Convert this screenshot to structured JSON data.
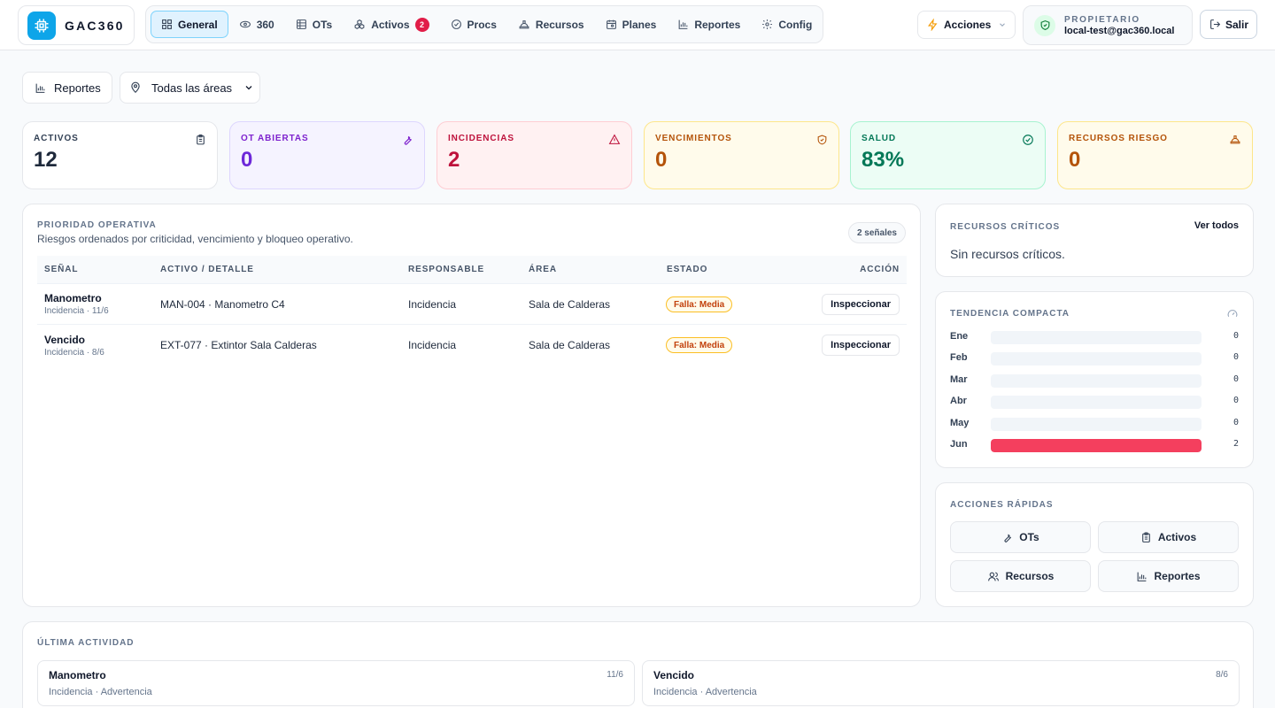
{
  "brand": {
    "name": "GAC360"
  },
  "nav": [
    {
      "key": "general",
      "label": "General",
      "icon": "grid-icon",
      "active": true
    },
    {
      "key": "360",
      "label": "360",
      "icon": "eye-icon"
    },
    {
      "key": "ots",
      "label": "OTs",
      "icon": "table-icon"
    },
    {
      "key": "activos",
      "label": "Activos",
      "icon": "boxes-icon",
      "badge": "2"
    },
    {
      "key": "procs",
      "label": "Procs",
      "icon": "check-circle-icon"
    },
    {
      "key": "recursos",
      "label": "Recursos",
      "icon": "hard-hat-icon"
    },
    {
      "key": "planes",
      "label": "Planes",
      "icon": "calendar-icon"
    },
    {
      "key": "reportes",
      "label": "Reportes",
      "icon": "bar-chart-icon"
    },
    {
      "key": "config",
      "label": "Config",
      "icon": "gear-icon"
    }
  ],
  "header": {
    "actions_label": "Acciones",
    "user_role": "PROPIETARIO",
    "user_email": "local-test@gac360.local",
    "logout_label": "Salir"
  },
  "filters": {
    "reports_label": "Reportes",
    "area_label": "Todas las áreas"
  },
  "kpis": [
    {
      "label": "ACTIVOS",
      "value": "12",
      "icon": "clipboard-icon",
      "color": "#334155",
      "value_color": "#1e293b",
      "bg": "#ffffff",
      "border": "#e5e7eb"
    },
    {
      "label": "OT ABIERTAS",
      "value": "0",
      "icon": "wrench-icon",
      "color": "#7e22ce",
      "value_color": "#6d28d9",
      "bg": "#f5f3ff",
      "border": "#ddd6fe"
    },
    {
      "label": "INCIDENCIAS",
      "value": "2",
      "icon": "alert-triangle-icon",
      "color": "#be123c",
      "value_color": "#be123c",
      "bg": "#fff1f2",
      "border": "#fecdd3"
    },
    {
      "label": "VENCIMIENTOS",
      "value": "0",
      "icon": "shield-icon",
      "color": "#b45309",
      "value_color": "#b45309",
      "bg": "#fffbeb",
      "border": "#fde68a"
    },
    {
      "label": "SALUD",
      "value": "83%",
      "icon": "check-circle-icon",
      "color": "#047857",
      "value_color": "#047857",
      "bg": "#ecfdf5",
      "border": "#a7f3d0"
    },
    {
      "label": "RECURSOS RIESGO",
      "value": "0",
      "icon": "hard-hat-icon",
      "color": "#b45309",
      "value_color": "#b45309",
      "bg": "#fffbeb",
      "border": "#fde68a"
    }
  ],
  "priority": {
    "title": "PRIORIDAD OPERATIVA",
    "subtitle": "Riesgos ordenados por criticidad, vencimiento y bloqueo operativo.",
    "count_badge": "2 señales",
    "columns": [
      "SEÑAL",
      "ACTIVO / DETALLE",
      "RESPONSABLE",
      "ÁREA",
      "ESTADO",
      "ACCIÓN"
    ],
    "rows": [
      {
        "signal": "Manometro",
        "sub": "Incidencia · 11/6",
        "detail": "MAN-004 · Manometro C4",
        "owner": "Incidencia",
        "area": "Sala de Calderas",
        "status": "Falla: Media",
        "action": "Inspeccionar"
      },
      {
        "signal": "Vencido",
        "sub": "Incidencia · 8/6",
        "detail": "EXT-077 · Extintor Sala Calderas",
        "owner": "Incidencia",
        "area": "Sala de Calderas",
        "status": "Falla: Media",
        "action": "Inspeccionar"
      }
    ]
  },
  "critical": {
    "title": "RECURSOS CRÍTICOS",
    "link": "Ver todos",
    "empty": "Sin recursos críticos."
  },
  "trend": {
    "title": "TENDENCIA COMPACTA",
    "icon": "gauge-icon",
    "max": 2,
    "rows": [
      {
        "label": "Ene",
        "value": 0
      },
      {
        "label": "Feb",
        "value": 0
      },
      {
        "label": "Mar",
        "value": 0
      },
      {
        "label": "Abr",
        "value": 0
      },
      {
        "label": "May",
        "value": 0
      },
      {
        "label": "Jun",
        "value": 2
      }
    ]
  },
  "quick": {
    "title": "ACCIONES RÁPIDAS",
    "buttons": [
      {
        "label": "OTs",
        "icon": "wrench-icon"
      },
      {
        "label": "Activos",
        "icon": "clipboard-icon"
      },
      {
        "label": "Recursos",
        "icon": "users-icon"
      },
      {
        "label": "Reportes",
        "icon": "bar-chart-icon"
      }
    ]
  },
  "activity": {
    "title": "ÚLTIMA ACTIVIDAD",
    "items": [
      {
        "title": "Manometro",
        "sub": "Incidencia · Advertencia",
        "date": "11/6"
      },
      {
        "title": "Vencido",
        "sub": "Incidencia · Advertencia",
        "date": "8/6"
      }
    ]
  }
}
